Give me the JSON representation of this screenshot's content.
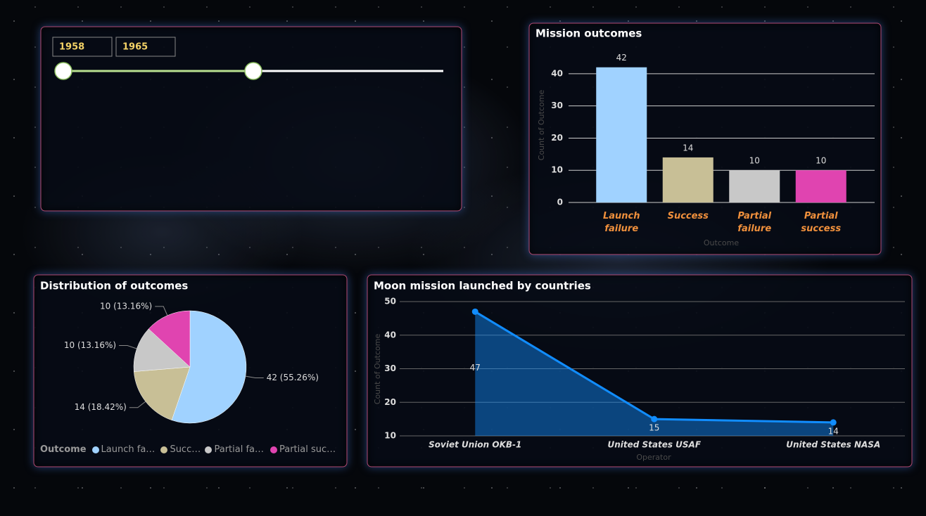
{
  "slicer": {
    "start": "1958",
    "end": "1965"
  },
  "chart_data": [
    {
      "type": "bar",
      "title": "Mission outcomes",
      "categories": [
        "Launch failure",
        "Success",
        "Partial failure",
        "Partial success"
      ],
      "values": [
        42,
        14,
        10,
        10
      ],
      "colors": [
        "#a0d2ff",
        "#c8bf96",
        "#c8c8c8",
        "#e044b0"
      ],
      "y_label": "Count of Outcome",
      "x_label": "Outcome",
      "ylim": [
        0,
        45
      ],
      "yticks": [
        0,
        10,
        20,
        30,
        40
      ],
      "grid": true
    },
    {
      "type": "pie",
      "title": "Distribution of outcomes",
      "categories": [
        "Launch failure",
        "Success",
        "Partial failure",
        "Partial success"
      ],
      "values": [
        42,
        14,
        10,
        10
      ],
      "value_labels": [
        "42 (55.26%)",
        "14 (18.42%)",
        "10 (13.16%)",
        "10 (13.16%)"
      ],
      "colors": [
        "#a0d2ff",
        "#c8bf96",
        "#c8c8c8",
        "#e044b0"
      ],
      "legend_title": "Outcome",
      "legend": "bottom-left"
    },
    {
      "type": "line",
      "title": "Moon mission launched by countries",
      "categories": [
        "Soviet Union OKB-1",
        "United States USAF",
        "United States NASA"
      ],
      "values": [
        47,
        15,
        14
      ],
      "color": "#118dff",
      "y_label": "Count of Outcome",
      "x_label": "Operator",
      "ylim": [
        10,
        50
      ],
      "yticks": [
        10,
        20,
        30,
        40,
        50
      ],
      "grid": true,
      "area": true
    }
  ]
}
